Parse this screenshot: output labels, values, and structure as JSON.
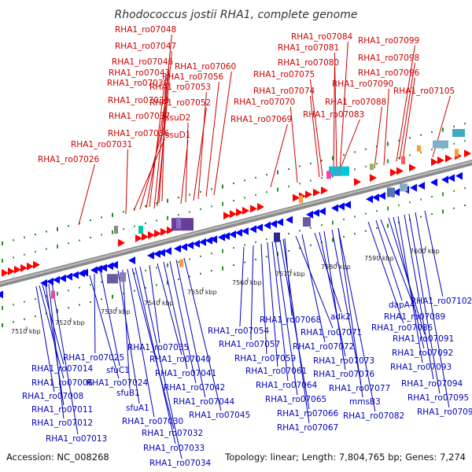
{
  "title": "Rhodococcus jostii RHA1, complete genome",
  "footer": {
    "accession": "Accession: NC_008268",
    "stats": "Topology: linear; Length: 7,804,765 bp; Genes: 7,274"
  },
  "colors": {
    "forward_label": "#cc0000",
    "reverse_label": "#0000bb",
    "forward_gene": "#ff0000",
    "reverse_gene": "#0000ff",
    "backbone": "#888888",
    "tick_dots": "#228822"
  },
  "scale_ticks": [
    {
      "label": "7510 kbp",
      "kbp": 7510
    },
    {
      "label": "7520 kbp",
      "kbp": 7520
    },
    {
      "label": "7530 kbp",
      "kbp": 7530
    },
    {
      "label": "7540 kbp",
      "kbp": 7540
    },
    {
      "label": "7550 kbp",
      "kbp": 7550
    },
    {
      "label": "7560 kbp",
      "kbp": 7560
    },
    {
      "label": "7570 kbp",
      "kbp": 7570
    },
    {
      "label": "7580 kbp",
      "kbp": 7580
    },
    {
      "label": "7590 kbp",
      "kbp": 7590
    },
    {
      "label": "7600 kbp",
      "kbp": 7600
    }
  ],
  "forward_labels": [
    "RHA1_ro07048",
    "RHA1_ro07047",
    "RHA1_ro07046",
    "RHA1_ro07043",
    "RHA1_ro07039",
    "RHA1_ro07038",
    "RHA1_ro07037",
    "RHA1_ro07036",
    "RHA1_ro07031",
    "RHA1_ro07026",
    "RHA1_ro07060",
    "RHA1_ro07056",
    "RHA1_ro07053",
    "RHA1_ro07052",
    "ssuD2",
    "ssuD1",
    "RHA1_ro07084",
    "RHA1_ro07081",
    "RHA1_ro07080",
    "RHA1_ro07075",
    "RHA1_ro07074",
    "RHA1_ro07070",
    "RHA1_ro07069",
    "RHA1_ro07083",
    "RHA1_ro07099",
    "RHA1_ro07098",
    "RHA1_ro07096",
    "RHA1_ro07090",
    "RHA1_ro07088",
    "RHA1_ro07105"
  ],
  "reverse_labels": [
    "RHA1_ro07014",
    "RHA1_ro07006",
    "RHA1_ro07008",
    "RHA1_ro07011",
    "RHA1_ro07012",
    "RHA1_ro07013",
    "RHA1_ro07025",
    "sfuC1",
    "RHA1_ro07024",
    "sfuB1",
    "sfuA1",
    "RHA1_ro07030",
    "RHA1_ro07032",
    "RHA1_ro07033",
    "RHA1_ro07034",
    "RHA1_ro07035",
    "RHA1_ro07040",
    "RHA1_ro07041",
    "RHA1_ro07042",
    "RHA1_ro07044",
    "RHA1_ro07045",
    "RHA1_ro07054",
    "RHA1_ro07057",
    "RHA1_ro07059",
    "RHA1_ro07061",
    "RHA1_ro07064",
    "RHA1_ro07065",
    "RHA1_ro07066",
    "RHA1_ro07067",
    "RHA1_ro07068",
    "RHA1_ro07071",
    "RHA1_ro07072",
    "adk2",
    "RHA1_ro07073",
    "RHA1_ro07076",
    "RHA1_ro07077",
    "mmsB3",
    "dapA4",
    "RHA1_ro07089",
    "RHA1_ro07086",
    "RHA1_ro07091",
    "RHA1_ro07092",
    "RHA1_ro07093",
    "RHA1_ro07094",
    "RHA1_ro07095",
    "RHA1_ro07097",
    "RHA1_ro07082",
    "RHA1_ro07102"
  ]
}
